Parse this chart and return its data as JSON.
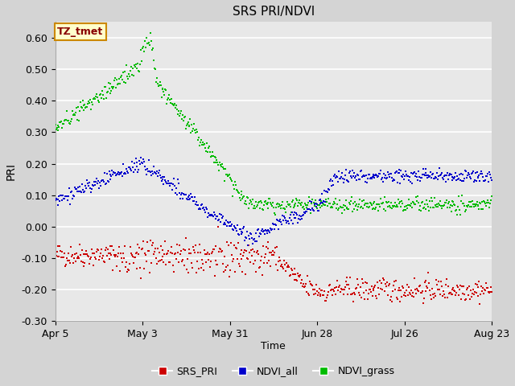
{
  "title": "SRS PRI/NDVI",
  "xlabel": "Time",
  "ylabel": "PRI",
  "ylim": [
    -0.3,
    0.65
  ],
  "yticks": [
    -0.3,
    -0.2,
    -0.1,
    0.0,
    0.1,
    0.2,
    0.3,
    0.4,
    0.5,
    0.6
  ],
  "ytick_labels": [
    "-0.30",
    "-0.20",
    "-0.10",
    "0.00",
    "0.10",
    "0.20",
    "0.30",
    "0.40",
    "0.50",
    "0.60"
  ],
  "xtick_labels": [
    "Apr 5",
    "May 3",
    "May 31",
    "Jun 28",
    "Jul 26",
    "Aug 23"
  ],
  "xtick_positions": [
    0,
    28,
    56,
    84,
    112,
    140
  ],
  "n_days": 140,
  "fig_bg_color": "#d4d4d4",
  "plot_bg_color": "#e8e8e8",
  "grid_color": "#ffffff",
  "annotation_text": "TZ_tmet",
  "annotation_bg": "#ffffcc",
  "annotation_border": "#cc8800",
  "annotation_text_color": "#880000",
  "srs_color": "#cc0000",
  "ndvi_all_color": "#0000cc",
  "ndvi_grass_color": "#00bb00",
  "marker_size": 2.0,
  "legend_labels": [
    "SRS_PRI",
    "NDVI_all",
    "NDVI_grass"
  ],
  "legend_colors": [
    "#cc0000",
    "#0000cc",
    "#00bb00"
  ]
}
